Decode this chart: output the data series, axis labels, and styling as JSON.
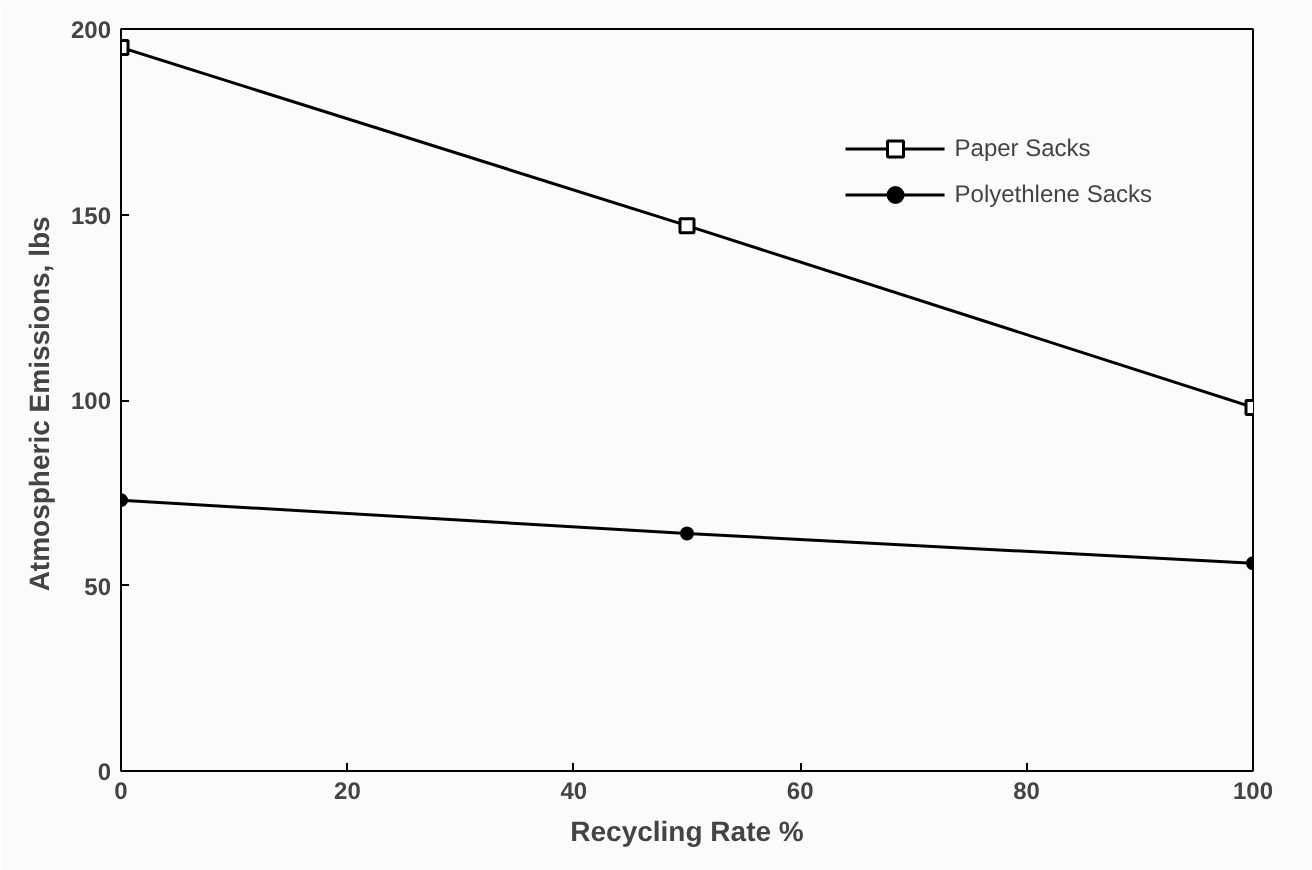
{
  "chart_data": {
    "type": "line",
    "xlabel": "Recycling Rate %",
    "ylabel": "Atmospheric Emissions,  lbs",
    "x": [
      0,
      50,
      100
    ],
    "series": [
      {
        "name": "Paper Sacks",
        "color": "#000000",
        "values": [
          195,
          147,
          98
        ],
        "marker": "square"
      },
      {
        "name": "Polyethlene Sacks",
        "color": "#000000",
        "values": [
          73,
          64,
          56
        ],
        "marker": "circle"
      }
    ],
    "xlim": [
      0,
      100
    ],
    "xticks": [
      0,
      20,
      40,
      60,
      80,
      100
    ],
    "ylim": [
      0,
      200
    ],
    "yticks": [
      0,
      50,
      100,
      150,
      200
    ],
    "grid": false,
    "legend": "top right",
    "line_style": "solid"
  }
}
